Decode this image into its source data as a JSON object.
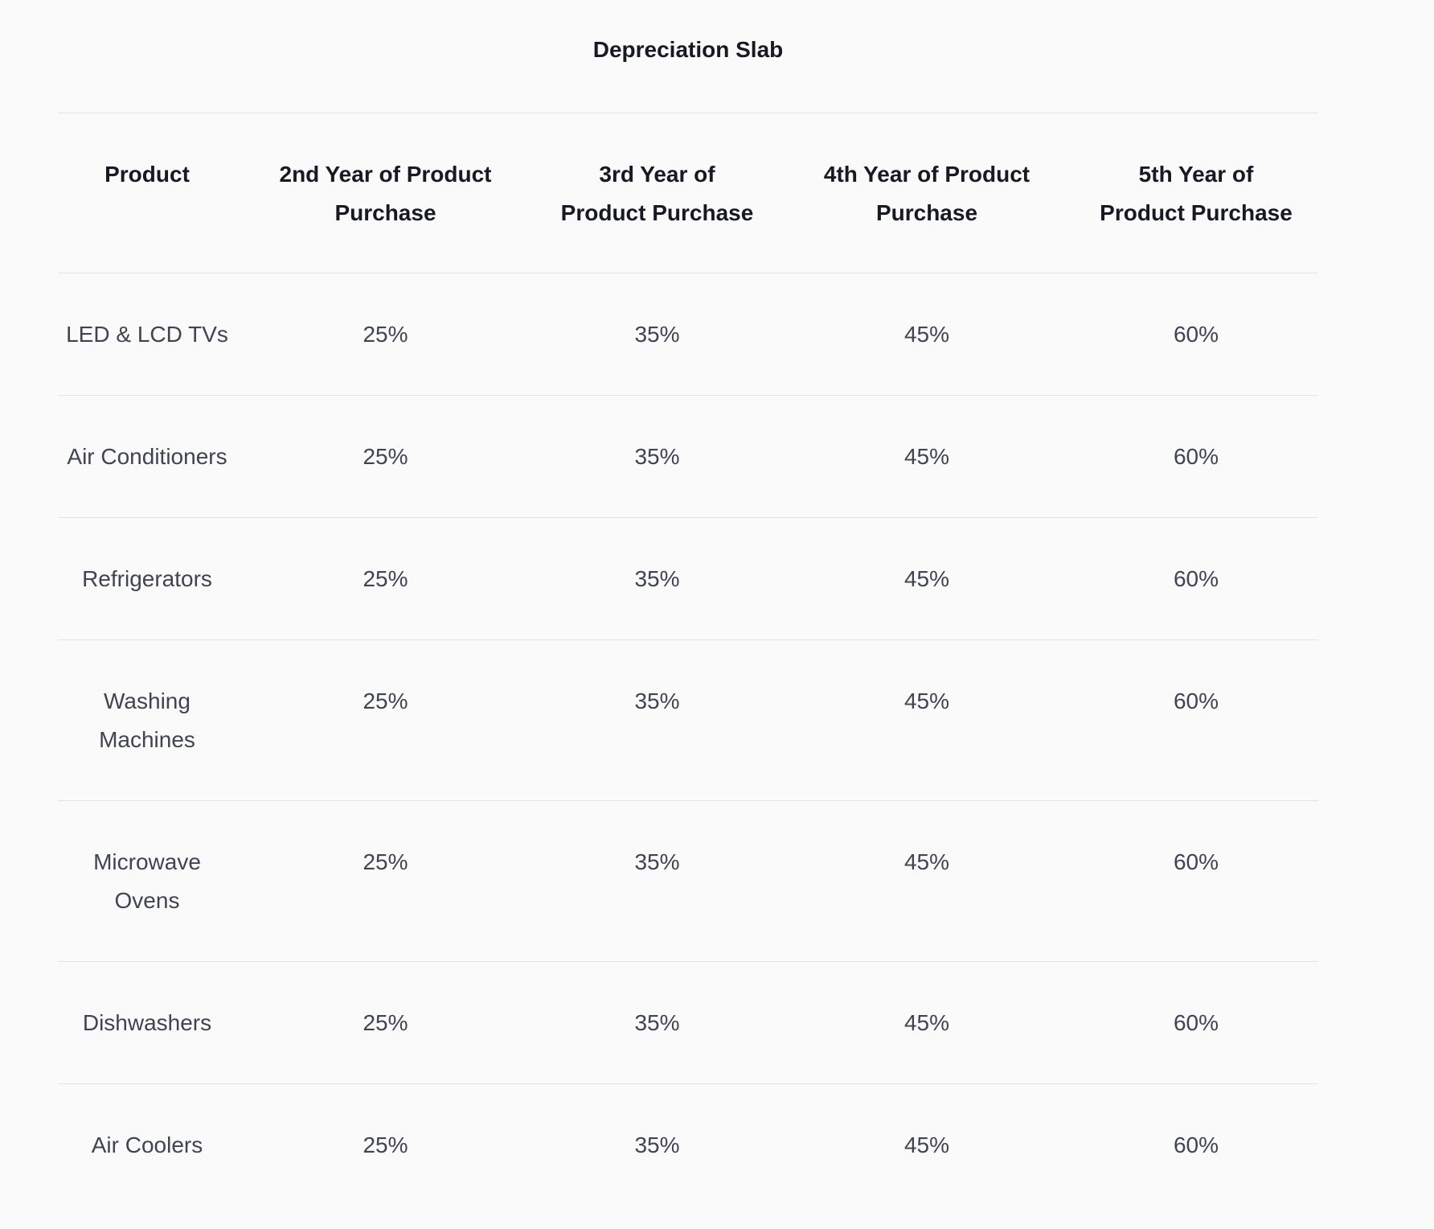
{
  "title": "Depreciation Slab",
  "table": {
    "headers": [
      "Product",
      "2nd Year of Product Purchase",
      "3rd Year of Product Purchase",
      "4th Year of Product Purchase",
      "5th Year of Product Purchase"
    ],
    "rows": [
      {
        "product": "LED & LCD TVs",
        "year2": "25%",
        "year3": "35%",
        "year4": "45%",
        "year5": "60%"
      },
      {
        "product": "Air Conditioners",
        "year2": "25%",
        "year3": "35%",
        "year4": "45%",
        "year5": "60%"
      },
      {
        "product": "Refrigerators",
        "year2": "25%",
        "year3": "35%",
        "year4": "45%",
        "year5": "60%"
      },
      {
        "product": "Washing Machines",
        "year2": "25%",
        "year3": "35%",
        "year4": "45%",
        "year5": "60%"
      },
      {
        "product": "Microwave Ovens",
        "year2": "25%",
        "year3": "35%",
        "year4": "45%",
        "year5": "60%"
      },
      {
        "product": "Dishwashers",
        "year2": "25%",
        "year3": "35%",
        "year4": "45%",
        "year5": "60%"
      },
      {
        "product": "Air Coolers",
        "year2": "25%",
        "year3": "35%",
        "year4": "45%",
        "year5": "60%"
      }
    ]
  }
}
